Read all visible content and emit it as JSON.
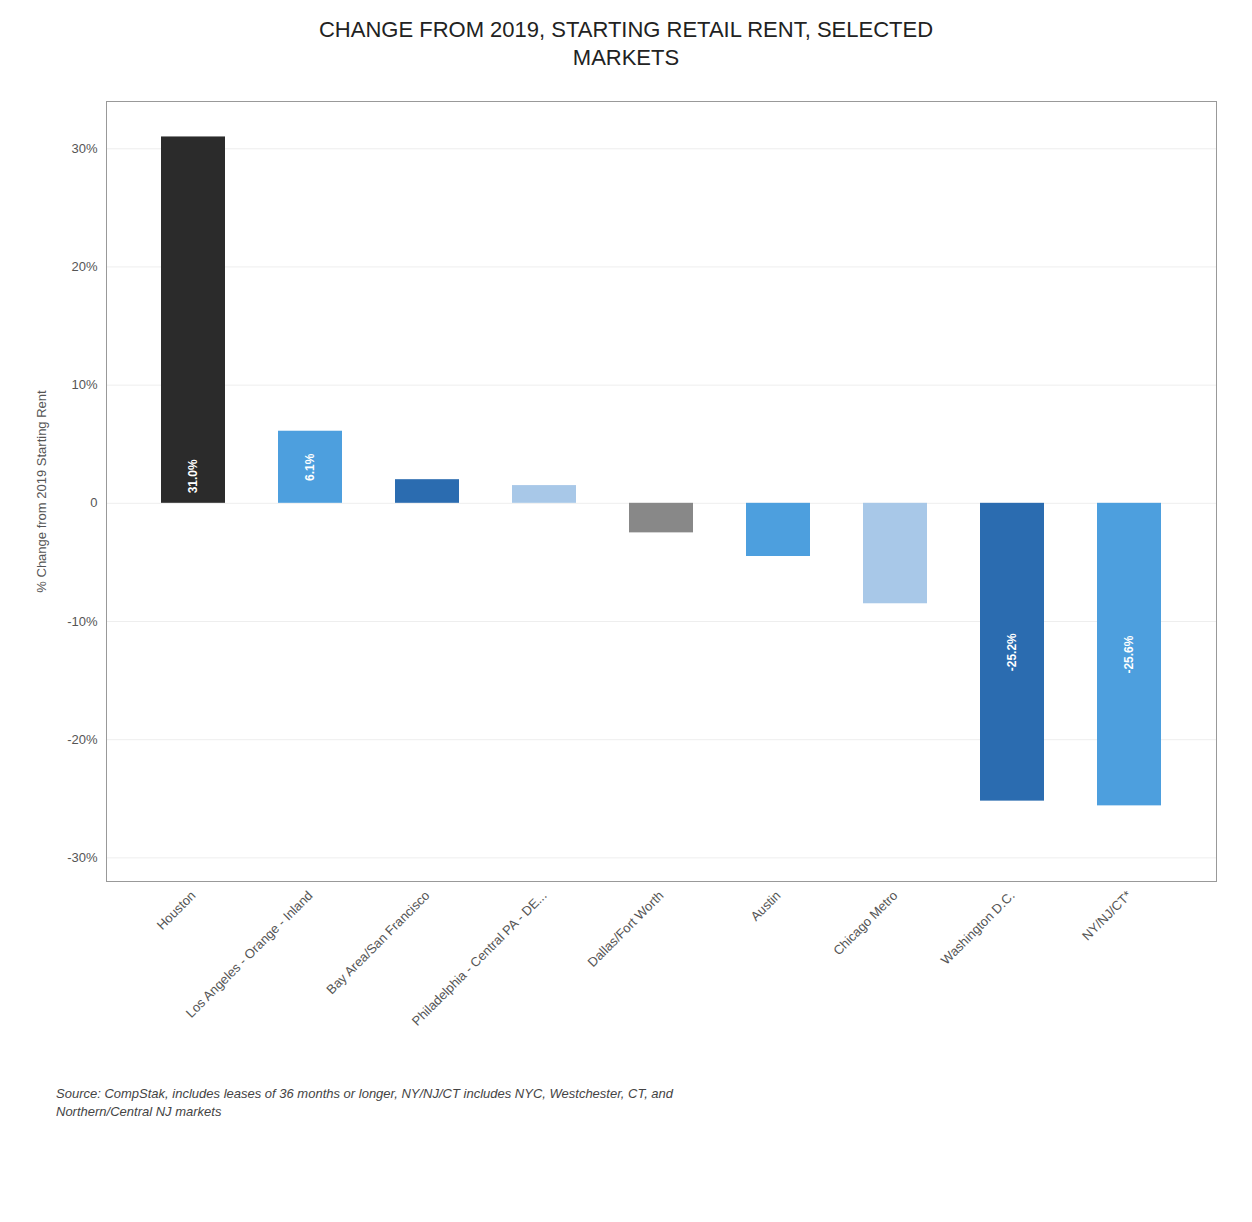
{
  "chart_data": {
    "type": "bar",
    "title": "CHANGE FROM 2019, STARTING RETAIL RENT, SELECTED\nMARKETS",
    "categories": [
      "Houston",
      "Los Angeles - Orange - Inland",
      "Bay Area/San Francisco",
      "Philadelphia - Central PA - DE...",
      "Dallas/Fort Worth",
      "Austin",
      "Chicago Metro",
      "Washington D.C.",
      "NY/NJ/CT*"
    ],
    "values": [
      31.0,
      6.1,
      2.0,
      1.5,
      -2.5,
      -4.5,
      -8.5,
      -25.2,
      -25.6
    ],
    "colors": [
      "#2b2b2b",
      "#4d9fde",
      "#2b6cb0",
      "#a8c8e8",
      "#888888",
      "#4d9fde",
      "#a8c8e8",
      "#2b6cb0",
      "#4d9fde"
    ],
    "data_labels": true,
    "value_labels": [
      "31.0%",
      "6.1%",
      null,
      null,
      null,
      null,
      null,
      "-25.2%",
      "-25.6%"
    ],
    "ylabel": "% Change from 2019 Starting Rent",
    "ylim": [
      -32,
      34
    ],
    "yticks": [
      {
        "value": -30,
        "label": "-30%"
      },
      {
        "value": -20,
        "label": "-20%"
      },
      {
        "value": -10,
        "label": "-10%"
      },
      0,
      {
        "value": 10,
        "label": "10%"
      },
      {
        "value": 20,
        "label": "20%"
      },
      {
        "value": 30,
        "label": "30%"
      }
    ],
    "grid": true,
    "caption": "Source: CompStak, includes leases of 36 months or longer, NY/NJ/CT includes NYC, Westchester, CT, and\nNorthern/Central NJ markets"
  }
}
